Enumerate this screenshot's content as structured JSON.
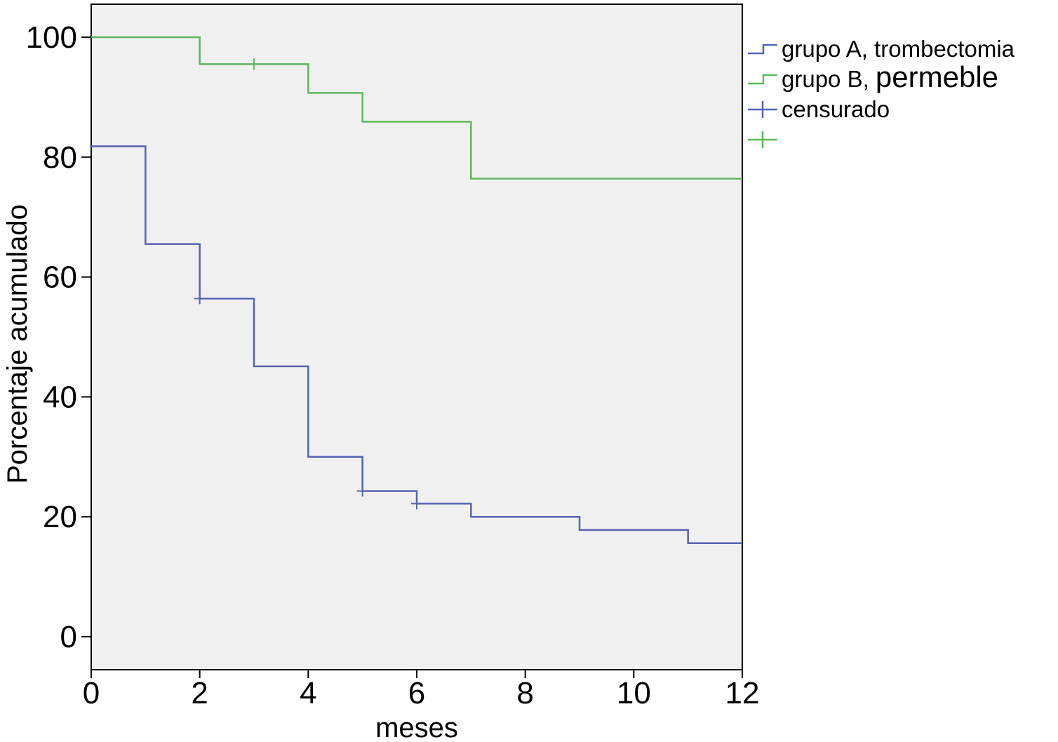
{
  "chart_data": {
    "type": "line",
    "step": true,
    "xlabel": "meses",
    "ylabel": "Porcentaje acumulado",
    "xlim": [
      0,
      12
    ],
    "ylim": [
      -5.5,
      105.5
    ],
    "xticks": [
      0,
      2,
      4,
      6,
      8,
      10,
      12
    ],
    "yticks": [
      0,
      20,
      40,
      60,
      80,
      100
    ],
    "grid": false,
    "legend_position": "right",
    "plot_background": "#f0f0f0",
    "series": [
      {
        "name": "grupo A, trombectomia",
        "color": "#5563b3",
        "x": [
          0,
          1,
          2,
          3,
          4,
          5,
          6,
          7,
          9,
          11,
          12
        ],
        "y": [
          81.8,
          65.5,
          56.4,
          45.1,
          30.0,
          24.3,
          22.2,
          20.0,
          17.8,
          15.6,
          15.6
        ],
        "censored_x": [
          2,
          5,
          6
        ],
        "censored_y": [
          56.4,
          24.3,
          22.2
        ]
      },
      {
        "name": "grupo B, permeble",
        "color": "#5cb85c",
        "x": [
          0,
          2,
          4,
          5,
          7,
          12
        ],
        "y": [
          100,
          95.5,
          90.7,
          85.9,
          76.4,
          76.4
        ],
        "censored_x": [
          3
        ],
        "censored_y": [
          95.5
        ]
      }
    ],
    "legend": {
      "entries": [
        {
          "label_a": "grupo A, trombectomia",
          "label_b": "",
          "color": "#5563b3",
          "marker": "step"
        },
        {
          "label_a": "grupo B, ",
          "label_b": "permeble",
          "color": "#5cb85c",
          "marker": "step"
        },
        {
          "label_a": "censurado",
          "label_b": "",
          "color": "#5563b3",
          "marker": "plus"
        },
        {
          "label_a": "",
          "label_b": "",
          "color": "#5cb85c",
          "marker": "plus"
        }
      ]
    }
  }
}
